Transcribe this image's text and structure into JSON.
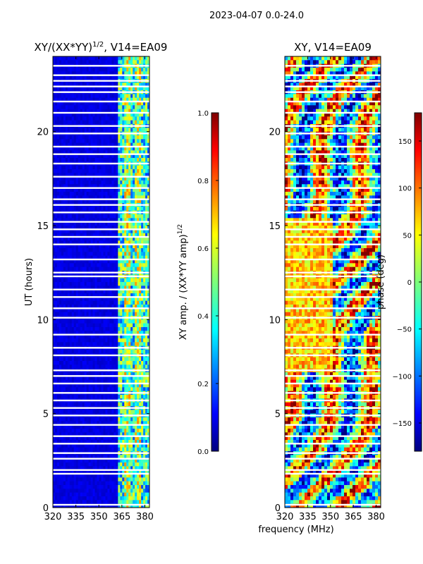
{
  "suptitle": "2023-04-07 0.0-24.0",
  "chart_data": [
    {
      "type": "heatmap",
      "title": "XY/(XX*YY)^1/2, V14=EA09",
      "title_main": "XY/(XX*YY)",
      "title_sup": "1/2",
      "title_tail": ", V14=EA09",
      "xlabel": "",
      "ylabel": "UT (hours)",
      "xlim": [
        320,
        383
      ],
      "ylim": [
        0,
        24
      ],
      "xticks": [
        320,
        335,
        350,
        365,
        380
      ],
      "yticks": [
        0,
        5,
        10,
        15,
        20
      ],
      "colorbar": {
        "label": "XY amp. / (XX*YY amp)^1/2",
        "label_main": "XY amp. / (XX*YY amp)",
        "label_sup": "1/2",
        "range": [
          0.0,
          1.0
        ],
        "ticks": [
          "0.0",
          "0.2",
          "0.4",
          "0.6",
          "0.8",
          "1.0"
        ],
        "tick_values": [
          0.0,
          0.2,
          0.4,
          0.6,
          0.8,
          1.0
        ]
      },
      "description_bands": [
        {
          "x_range": [
            320,
            363
          ],
          "value": 0.08
        },
        {
          "x_range": [
            363,
            382
          ],
          "value": 0.45
        }
      ],
      "gap_hours": [
        0.15,
        1.8,
        2.0,
        2.6,
        2.9,
        3.4,
        3.8,
        4.4,
        4.9,
        5.3,
        5.7,
        6.1,
        6.6,
        7.0,
        7.3,
        8.1,
        8.5,
        9.2,
        10.1,
        10.6,
        11.2,
        11.6,
        12.3,
        12.5,
        13.2,
        14.0,
        14.4,
        14.8,
        15.2,
        15.7,
        16.1,
        16.4,
        17.0,
        17.6,
        18.3,
        18.8,
        19.2,
        19.9,
        20.3,
        21.0,
        21.6,
        22.1,
        22.4,
        22.7,
        23.0,
        23.5
      ]
    },
    {
      "type": "heatmap",
      "title": "XY, V14=EA09",
      "xlabel": "frequency (MHz)",
      "ylabel": "",
      "xlim": [
        320,
        383
      ],
      "ylim": [
        0,
        24
      ],
      "xticks": [
        320,
        335,
        350,
        365,
        380
      ],
      "yticks": [
        0,
        5,
        10,
        15,
        20
      ],
      "colorbar": {
        "label": "phase (deg)",
        "range": [
          -180,
          180
        ],
        "ticks": [
          "−150",
          "−100",
          "−50",
          "0",
          "50",
          "100",
          "150"
        ],
        "tick_values": [
          -150,
          -100,
          -50,
          0,
          50,
          100,
          150
        ]
      },
      "gap_hours": [
        0.15,
        1.8,
        2.0,
        2.6,
        2.9,
        3.4,
        3.8,
        4.4,
        4.9,
        5.3,
        5.7,
        6.1,
        6.6,
        7.0,
        7.3,
        8.1,
        8.5,
        9.2,
        10.1,
        10.6,
        11.2,
        11.6,
        12.3,
        12.5,
        13.2,
        14.0,
        14.4,
        14.8,
        15.2,
        15.7,
        16.1,
        16.4,
        17.0,
        17.6,
        18.3,
        18.8,
        19.2,
        19.9,
        20.3,
        21.0,
        21.6,
        22.1,
        22.4,
        22.7,
        23.0,
        23.5
      ]
    }
  ]
}
